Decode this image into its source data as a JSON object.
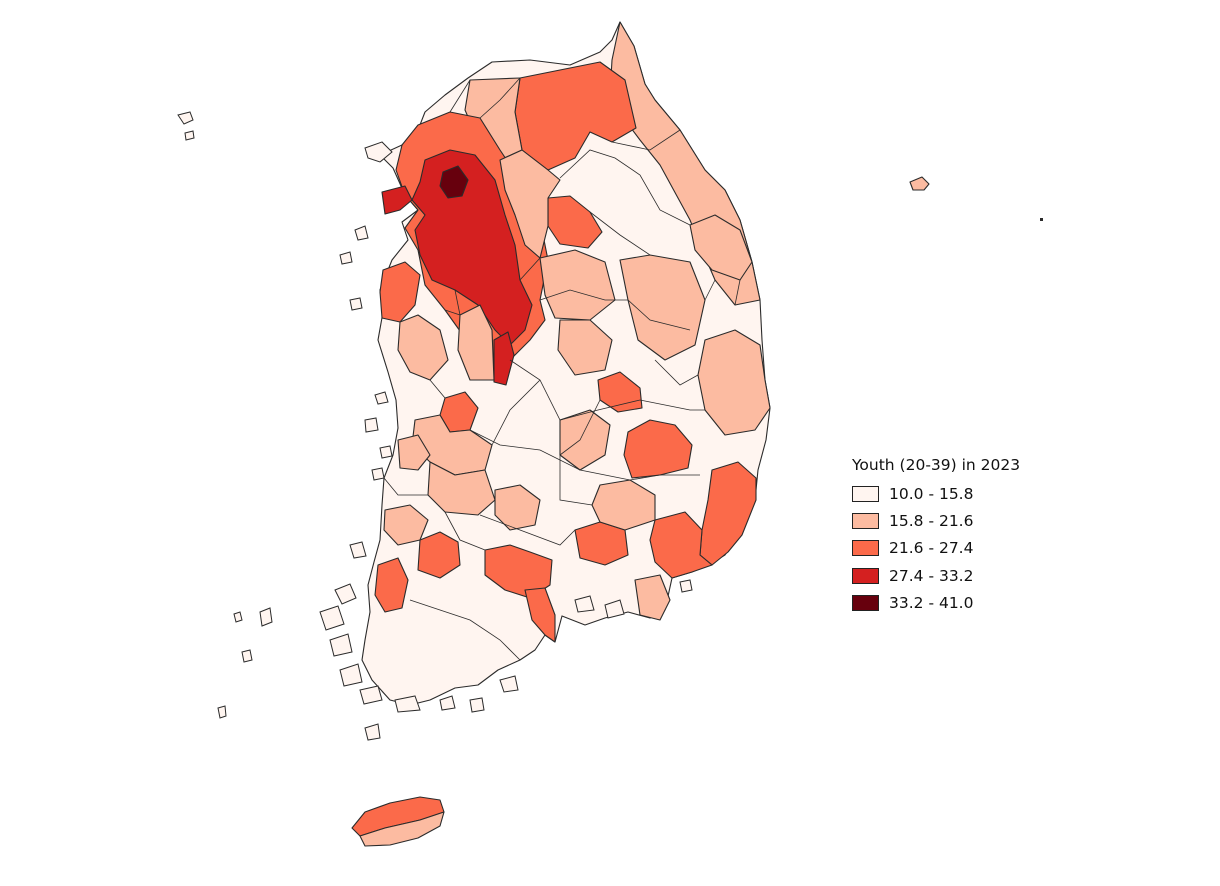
{
  "legend": {
    "title": "Youth (20-39) in 2023",
    "classes": [
      {
        "label": "10.0 - 15.8",
        "color": "#fff5f0"
      },
      {
        "label": "15.8 - 21.6",
        "color": "#fcbba1"
      },
      {
        "label": "21.6 - 27.4",
        "color": "#fb6a4a"
      },
      {
        "label": "27.4 - 33.2",
        "color": "#d42020"
      },
      {
        "label": "33.2 - 41.0",
        "color": "#67000d"
      }
    ]
  }
}
